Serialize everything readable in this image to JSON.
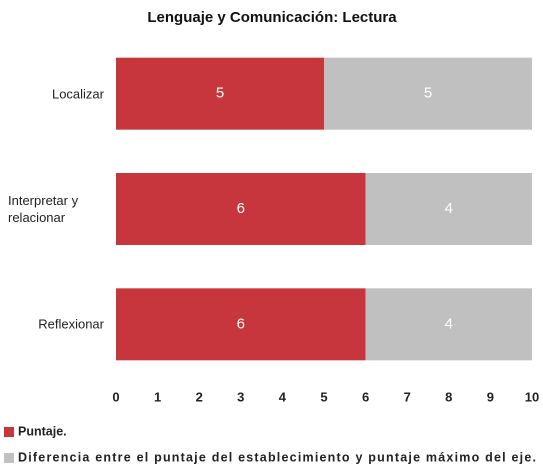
{
  "chart_data": {
    "type": "stacked_barh",
    "title": "Lenguaje y Comunicación: Lectura",
    "categories": [
      "Localizar",
      "Interpretar y relacionar",
      "Reflexionar"
    ],
    "series": [
      {
        "name": "Puntaje.",
        "color": "#c8363d",
        "values": [
          5,
          6,
          6
        ]
      },
      {
        "name": "Diferencia entre el puntaje del establecimiento y puntaje máximo del eje.",
        "color": "#c0c0c0",
        "values": [
          5,
          4,
          4
        ]
      }
    ],
    "xlim": [
      0,
      10
    ],
    "xticks": [
      0,
      1,
      2,
      3,
      4,
      5,
      6,
      7,
      8,
      9,
      10
    ],
    "legend": "bottom-left"
  }
}
